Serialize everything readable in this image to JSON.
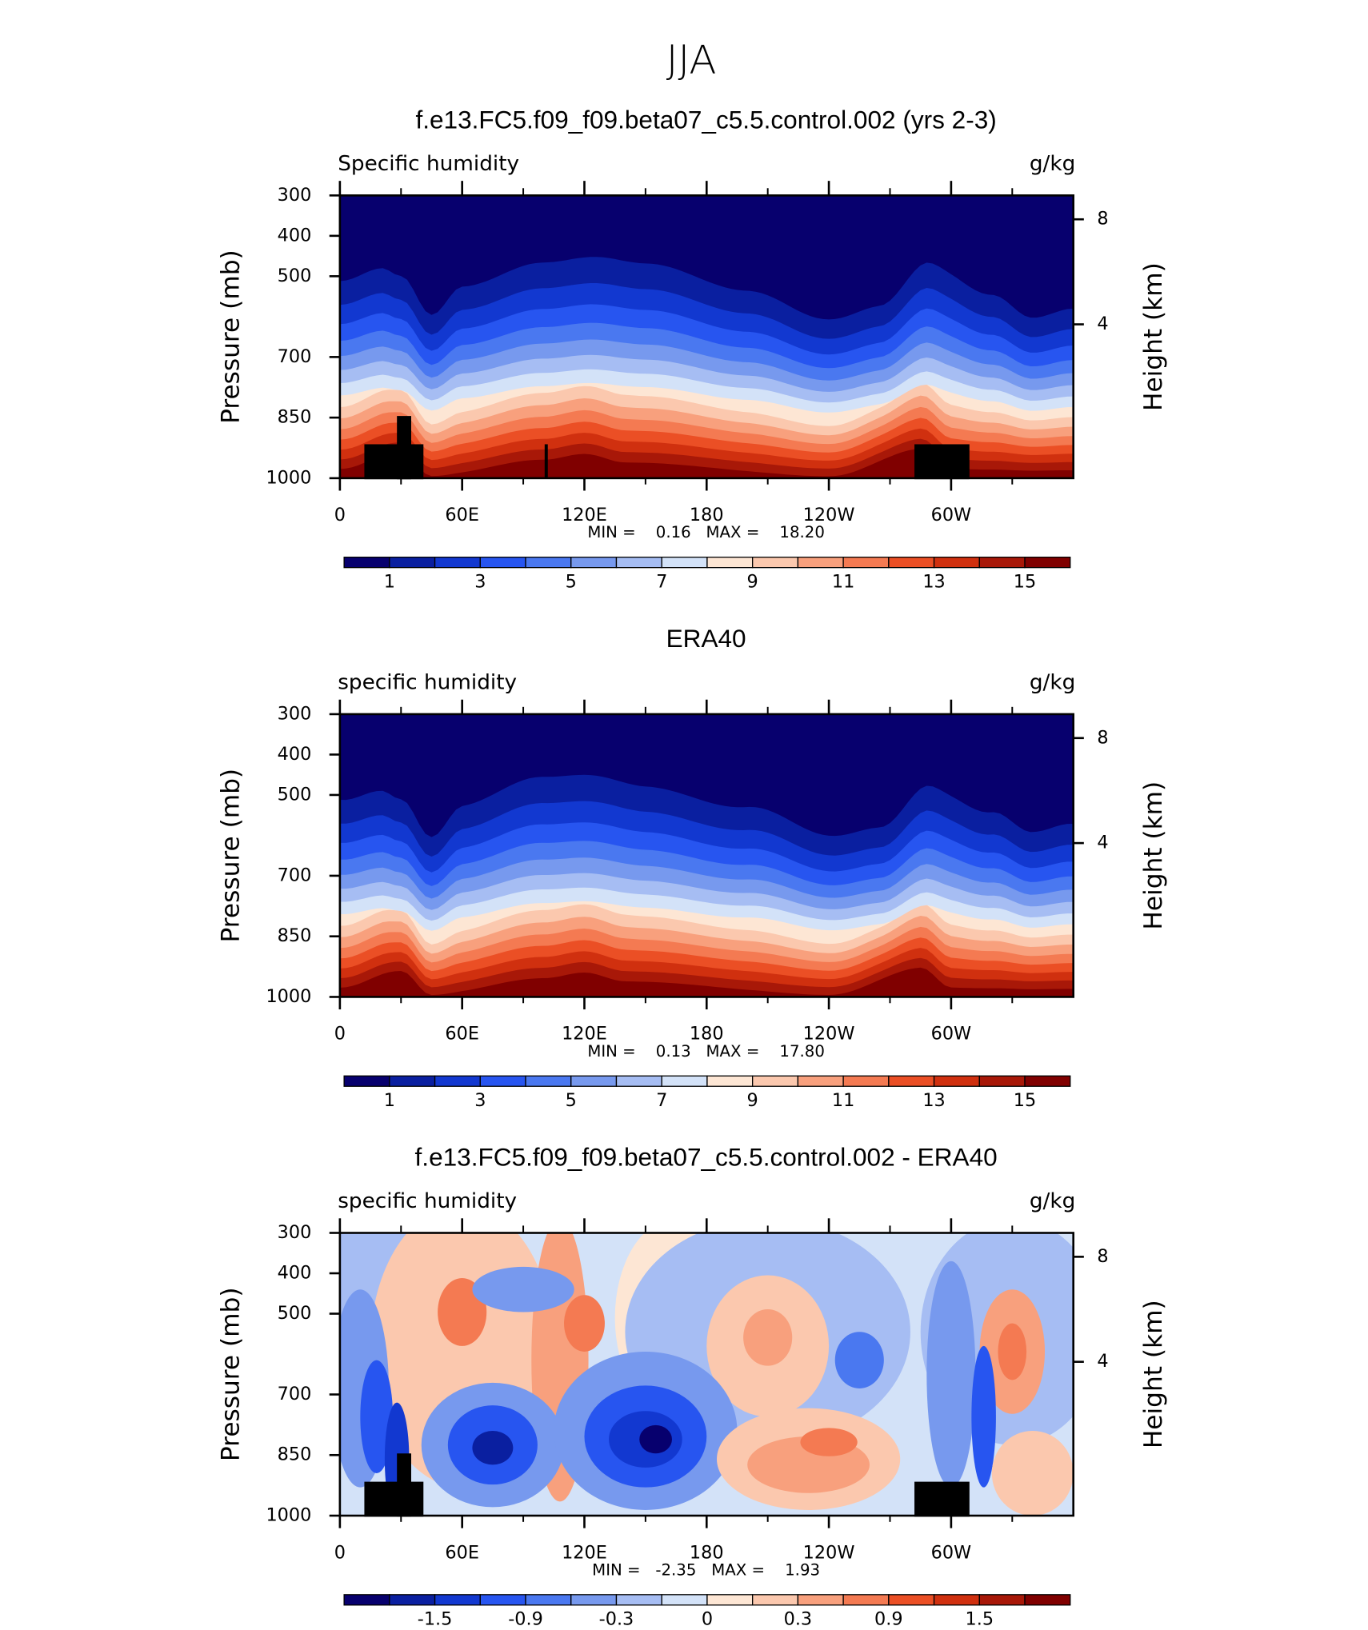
{
  "page_title": "JJA",
  "chart_data": [
    {
      "type": "contour",
      "title": "f.e13.FC5.f09_f09.beta07_c5.5.control.002 (yrs 2-3)",
      "left_label": "Specific humidity",
      "right_label": "g/kg",
      "ylabel": "Pressure (mb)",
      "y2label": "Height (km)",
      "xlim": [
        0,
        360
      ],
      "xticks": [
        0,
        {
          "value": 60,
          "label": "60E"
        },
        {
          "value": 120,
          "label": "120E"
        },
        180,
        {
          "value": 240,
          "label": "120W"
        },
        {
          "value": 300,
          "label": "60W"
        }
      ],
      "ylim": [
        1000,
        300
      ],
      "yticks": [
        300,
        400,
        500,
        700,
        850,
        1000
      ],
      "y2lim": [
        -1.86,
        8.91
      ],
      "y2ticks": [
        4,
        8
      ],
      "stats": "MIN =    0.16   MAX =    18.20",
      "colorbar": {
        "colors": [
          "#07006e",
          "#0a1fa0",
          "#1238d0",
          "#2755f0",
          "#4a78f0",
          "#7799ee",
          "#a6bdf3",
          "#d3e2f8",
          "#fde6d4",
          "#fbc8ae",
          "#f8a07d",
          "#f47a52",
          "#eb4f25",
          "#d0300f",
          "#a81808",
          "#800000"
        ],
        "ticks": [
          1,
          3,
          5,
          7,
          9,
          11,
          13,
          15
        ]
      }
    },
    {
      "type": "contour",
      "title": "ERA40",
      "left_label": "specific humidity",
      "right_label": "g/kg",
      "ylabel": "Pressure (mb)",
      "y2label": "Height (km)",
      "xlim": [
        0,
        360
      ],
      "xticks": [
        0,
        {
          "value": 60,
          "label": "60E"
        },
        {
          "value": 120,
          "label": "120E"
        },
        180,
        {
          "value": 240,
          "label": "120W"
        },
        {
          "value": 300,
          "label": "60W"
        }
      ],
      "ylim": [
        1000,
        300
      ],
      "yticks": [
        300,
        400,
        500,
        700,
        850,
        1000
      ],
      "y2lim": [
        -1.86,
        8.91
      ],
      "y2ticks": [
        4,
        8
      ],
      "stats": "MIN =    0.13   MAX =    17.80",
      "colorbar": {
        "colors": [
          "#07006e",
          "#0a1fa0",
          "#1238d0",
          "#2755f0",
          "#4a78f0",
          "#7799ee",
          "#a6bdf3",
          "#d3e2f8",
          "#fde6d4",
          "#fbc8ae",
          "#f8a07d",
          "#f47a52",
          "#eb4f25",
          "#d0300f",
          "#a81808",
          "#800000"
        ],
        "ticks": [
          1,
          3,
          5,
          7,
          9,
          11,
          13,
          15
        ]
      }
    },
    {
      "type": "difference",
      "title": "f.e13.FC5.f09_f09.beta07_c5.5.control.002 - ERA40",
      "left_label": "specific humidity",
      "right_label": "g/kg",
      "ylabel": "Pressure (mb)",
      "y2label": "Height (km)",
      "xlim": [
        0,
        360
      ],
      "xticks": [
        0,
        {
          "value": 60,
          "label": "60E"
        },
        {
          "value": 120,
          "label": "120E"
        },
        180,
        {
          "value": 240,
          "label": "120W"
        },
        {
          "value": 300,
          "label": "60W"
        }
      ],
      "ylim": [
        1000,
        300
      ],
      "yticks": [
        300,
        400,
        500,
        700,
        850,
        1000
      ],
      "y2lim": [
        -1.86,
        8.91
      ],
      "y2ticks": [
        4,
        8
      ],
      "stats": "MIN =   -2.35   MAX =    1.93",
      "colorbar": {
        "colors": [
          "#07006e",
          "#0a1fa0",
          "#1238d0",
          "#2755f0",
          "#4a78f0",
          "#7799ee",
          "#a6bdf3",
          "#d3e2f8",
          "#fde6d4",
          "#fbc8ae",
          "#f8a07d",
          "#f47a52",
          "#eb4f25",
          "#d0300f",
          "#a81808",
          "#800000"
        ],
        "ticks": [
          -1.5,
          -0.9,
          -0.3,
          0,
          0.3,
          0.9,
          1.5
        ]
      }
    }
  ]
}
